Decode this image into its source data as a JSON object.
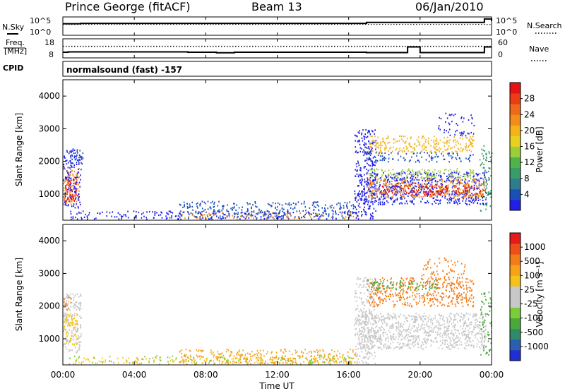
{
  "header": {
    "station": "Prince George (fitACF)",
    "beam": "Beam 13",
    "date": "06/Jan/2010"
  },
  "top_panels": {
    "nsky_label": "N.Sky",
    "nsearch_label": "N.Search",
    "freq_label_1": "Freq.",
    "freq_label_2": "[MHz]",
    "nave_label": "Nave",
    "cpid_label": "CPID",
    "cpid_value": "normalsound (fast) -157",
    "noise_ticks_left": [
      "10^5",
      "10^0"
    ],
    "noise_ticks_right": [
      "10^5",
      "10^0"
    ],
    "freq_ticks": [
      "18",
      "8"
    ],
    "nave_ticks": [
      "60",
      "0"
    ]
  },
  "colorbars": {
    "power": {
      "label": "Power [dB]",
      "ticks": [
        "28",
        "24",
        "20",
        "16",
        "12",
        "8",
        "4"
      ],
      "colors": [
        "#1f1fe6",
        "#1b4fb8",
        "#2e7d8f",
        "#3a9b6a",
        "#4fb34a",
        "#9bcf3a",
        "#e6d21f",
        "#f5b21a",
        "#f28c1a",
        "#ee6a1a",
        "#ea3c16",
        "#e51414"
      ]
    },
    "velocity": {
      "label": "Velocity [m s⁻¹]",
      "ticks": [
        "1000",
        "500",
        "100",
        "25",
        "-25",
        "-100",
        "-500",
        "-1000"
      ],
      "colors": [
        "#1f2fd6",
        "#2c5fb0",
        "#2f8a6a",
        "#4aa83c",
        "#7ccc3a",
        "#c8c8c8",
        "#c8c8c8",
        "#f5c21a",
        "#f5a21a",
        "#f27c1a",
        "#ee4e1a",
        "#e51a1a"
      ]
    }
  },
  "chart_data": [
    {
      "type": "line",
      "name": "noise-panel",
      "x": [
        0,
        1,
        4,
        8,
        12,
        16.6,
        17,
        20,
        23.4,
        23.6,
        24
      ],
      "series": [
        {
          "name": "N.Sky",
          "values": [
            3.2,
            3.3,
            3.3,
            3.3,
            3.3,
            3.3,
            3.6,
            3.6,
            3.6,
            4.6,
            4.0
          ]
        },
        {
          "name": "N.Search",
          "values": [
            3.0,
            3.0,
            3.0,
            3.0,
            3.0,
            3.0,
            3.0,
            3.0,
            3.0,
            3.0,
            3.0
          ]
        }
      ],
      "xlim": [
        0,
        24
      ],
      "ylim": [
        0,
        5
      ]
    },
    {
      "type": "line",
      "name": "frequency-panel",
      "x": [
        0,
        0.3,
        1,
        6.6,
        7,
        8.3,
        8.6,
        9,
        9.6,
        12,
        14,
        16.6,
        17,
        19.1,
        19.3,
        20,
        23.6,
        24
      ],
      "series": [
        {
          "name": "Freq",
          "values": [
            10.5,
            10.7,
            10.7,
            10.7,
            10.5,
            10.5,
            10.2,
            10.2,
            10.5,
            10.5,
            10.5,
            10.5,
            10.3,
            10.3,
            13.6,
            10.3,
            13.6,
            13.6
          ]
        },
        {
          "name": "Nave",
          "values": [
            36,
            36,
            36,
            36,
            36,
            36,
            36,
            36,
            36,
            36,
            36,
            36,
            36,
            36,
            36,
            36,
            36,
            36
          ]
        }
      ],
      "ylim": [
        8,
        18
      ],
      "xlim": [
        0,
        24
      ]
    },
    {
      "type": "heatmap",
      "name": "power-rti",
      "xlabel": "",
      "ylabel": "Slant Range [km]",
      "xlim": [
        0,
        24
      ],
      "ylim": [
        200,
        4500
      ],
      "yticks": [
        1000,
        2000,
        3000,
        4000
      ],
      "colorbar_label": "Power [dB]",
      "blobs": [
        {
          "t0": 0.05,
          "t1": 0.75,
          "r0": 800,
          "r1": 1500,
          "color": "#e51414",
          "density": 0.9
        },
        {
          "t0": 0.0,
          "t1": 0.9,
          "r0": 700,
          "r1": 1800,
          "color": "#f28c1a",
          "density": 0.6
        },
        {
          "t0": 0.0,
          "t1": 1.0,
          "r0": 600,
          "r1": 2400,
          "color": "#1f1fe6",
          "density": 0.45
        },
        {
          "t0": 0.4,
          "t1": 1.1,
          "r0": 1900,
          "r1": 2400,
          "color": "#1b4fb8",
          "density": 0.5
        },
        {
          "t0": 0.3,
          "t1": 16.5,
          "r0": 250,
          "r1": 500,
          "color": "#1f1fe6",
          "density": 0.35
        },
        {
          "t0": 6.5,
          "t1": 16.5,
          "r0": 250,
          "r1": 800,
          "color": "#1b4fb8",
          "density": 0.4
        },
        {
          "t0": 6.5,
          "t1": 16.5,
          "r0": 250,
          "r1": 450,
          "color": "#f28c1a",
          "density": 0.25
        },
        {
          "t0": 16.3,
          "t1": 17.5,
          "r0": 250,
          "r1": 3000,
          "color": "#1f1fe6",
          "density": 0.5
        },
        {
          "t0": 16.5,
          "t1": 23.7,
          "r0": 700,
          "r1": 1700,
          "color": "#1f1fe6",
          "density": 0.6
        },
        {
          "t0": 17.0,
          "t1": 23.6,
          "r0": 900,
          "r1": 1500,
          "color": "#f28c1a",
          "density": 0.6
        },
        {
          "t0": 17.5,
          "t1": 23.5,
          "r0": 1000,
          "r1": 1300,
          "color": "#e51414",
          "density": 0.45
        },
        {
          "t0": 17.0,
          "t1": 23.0,
          "r0": 1500,
          "r1": 1800,
          "color": "#9bcf3a",
          "density": 0.55
        },
        {
          "t0": 17.0,
          "t1": 23.0,
          "r0": 2300,
          "r1": 2800,
          "color": "#f5b21a",
          "density": 0.55
        },
        {
          "t0": 17.0,
          "t1": 23.0,
          "r0": 2000,
          "r1": 2300,
          "color": "#1b4fb8",
          "density": 0.4
        },
        {
          "t0": 21.0,
          "t1": 23.0,
          "r0": 2800,
          "r1": 3500,
          "color": "#1f1fe6",
          "density": 0.25
        },
        {
          "t0": 23.3,
          "t1": 24.0,
          "r0": 500,
          "r1": 2500,
          "color": "#3a9b6a",
          "density": 0.35
        }
      ]
    },
    {
      "type": "heatmap",
      "name": "velocity-rti",
      "xlabel": "Time UT",
      "ylabel": "Slant Range [km]",
      "xlim": [
        0,
        24
      ],
      "ylim": [
        200,
        4500
      ],
      "yticks": [
        1000,
        2000,
        3000,
        4000
      ],
      "xticks": [
        "00:00",
        "04:00",
        "08:00",
        "12:00",
        "16:00",
        "20:00",
        "00:00"
      ],
      "colorbar_label": "Velocity [m s⁻¹]",
      "blobs": [
        {
          "t0": 0.0,
          "t1": 1.0,
          "r0": 600,
          "r1": 2400,
          "color": "#c8c8c8",
          "density": 0.65
        },
        {
          "t0": 0.0,
          "t1": 0.8,
          "r0": 800,
          "r1": 1800,
          "color": "#f5c21a",
          "density": 0.55
        },
        {
          "t0": 0.0,
          "t1": 0.5,
          "r0": 1900,
          "r1": 2300,
          "color": "#f27c1a",
          "density": 0.4
        },
        {
          "t0": 0.3,
          "t1": 16.5,
          "r0": 250,
          "r1": 450,
          "color": "#f5c21a",
          "density": 0.4
        },
        {
          "t0": 6.5,
          "t1": 16.5,
          "r0": 250,
          "r1": 700,
          "color": "#f5a21a",
          "density": 0.45
        },
        {
          "t0": 0.3,
          "t1": 16.5,
          "r0": 250,
          "r1": 500,
          "color": "#7ccc3a",
          "density": 0.15
        },
        {
          "t0": 16.3,
          "t1": 17.5,
          "r0": 250,
          "r1": 2900,
          "color": "#c8c8c8",
          "density": 0.55
        },
        {
          "t0": 16.5,
          "t1": 23.7,
          "r0": 700,
          "r1": 1800,
          "color": "#c8c8c8",
          "density": 0.75
        },
        {
          "t0": 17.0,
          "t1": 23.0,
          "r0": 2000,
          "r1": 2900,
          "color": "#f27c1a",
          "density": 0.55
        },
        {
          "t0": 17.0,
          "t1": 21.0,
          "r0": 2500,
          "r1": 2800,
          "color": "#4aa83c",
          "density": 0.45
        },
        {
          "t0": 20.0,
          "t1": 22.5,
          "r0": 2800,
          "r1": 3500,
          "color": "#f27c1a",
          "density": 0.25
        },
        {
          "t0": 23.3,
          "t1": 24.0,
          "r0": 500,
          "r1": 2500,
          "color": "#4aa83c",
          "density": 0.3
        }
      ]
    }
  ]
}
